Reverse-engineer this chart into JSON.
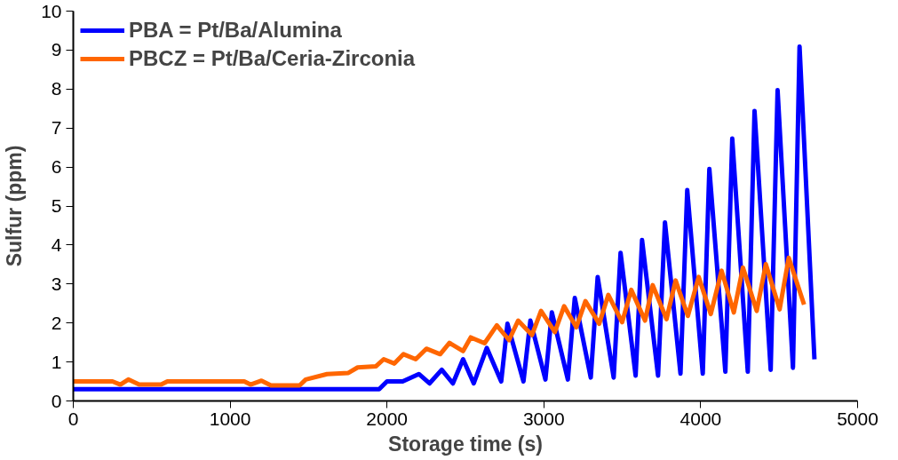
{
  "chart_data": {
    "type": "line",
    "xlabel": "Storage time (s)",
    "ylabel": "Sulfur (ppm)",
    "xlim": [
      0,
      5000
    ],
    "ylim": [
      0,
      10
    ],
    "xticks": [
      0,
      1000,
      2000,
      3000,
      4000,
      5000
    ],
    "yticks": [
      0,
      1,
      2,
      3,
      4,
      5,
      6,
      7,
      8,
      9,
      10
    ],
    "grid": false,
    "legend": "top left",
    "marker": "none",
    "line_style": "solid",
    "series": [
      {
        "name": "PBA = Pt/Ba/Alumina",
        "color": "#0000ff",
        "x": [
          0,
          1950,
          2000,
          2100,
          2203,
          2271,
          2349,
          2420,
          2485,
          2553,
          2636,
          2728,
          2768,
          2870,
          2914,
          3010,
          3051,
          3153,
          3197,
          3299,
          3343,
          3445,
          3489,
          3585,
          3626,
          3728,
          3772,
          3871,
          3914,
          4013,
          4055,
          4157,
          4201,
          4300,
          4343,
          4446,
          4490,
          4588,
          4630,
          4725
        ],
        "values": [
          0.3,
          0.3,
          0.5,
          0.5,
          0.69,
          0.45,
          0.8,
          0.45,
          1.07,
          0.45,
          1.36,
          0.5,
          1.98,
          0.5,
          2.06,
          0.55,
          2.27,
          0.55,
          2.64,
          0.6,
          3.18,
          0.6,
          3.8,
          0.65,
          4.13,
          0.65,
          4.58,
          0.7,
          5.41,
          0.7,
          5.95,
          0.75,
          6.73,
          0.75,
          7.44,
          0.8,
          7.97,
          0.85,
          9.09,
          1.07
        ]
      },
      {
        "name": "PBCZ = Pt/Ba/Ceria-Zirconia",
        "color": "#ff6600",
        "x": [
          0,
          250,
          300,
          351,
          420,
          560,
          600,
          1090,
          1130,
          1200,
          1260,
          1443,
          1482,
          1618,
          1754,
          1813,
          1930,
          1979,
          2047,
          2105,
          2183,
          2251,
          2339,
          2398,
          2485,
          2534,
          2622,
          2700,
          2778,
          2836,
          2924,
          2982,
          3070,
          3129,
          3207,
          3265,
          3353,
          3411,
          3499,
          3557,
          3645,
          3694,
          3782,
          3840,
          3918,
          3987,
          4064,
          4133,
          4211,
          4269,
          4357,
          4415,
          4503,
          4561,
          4659
        ],
        "values": [
          0.5,
          0.5,
          0.42,
          0.55,
          0.42,
          0.42,
          0.5,
          0.5,
          0.42,
          0.52,
          0.4,
          0.4,
          0.55,
          0.69,
          0.72,
          0.86,
          0.89,
          1.07,
          0.96,
          1.2,
          1.07,
          1.34,
          1.2,
          1.49,
          1.28,
          1.63,
          1.48,
          1.94,
          1.56,
          2.06,
          1.69,
          2.31,
          1.77,
          2.43,
          1.89,
          2.56,
          1.98,
          2.72,
          2.02,
          2.85,
          2.06,
          2.97,
          2.1,
          3.09,
          2.18,
          3.18,
          2.23,
          3.34,
          2.27,
          3.42,
          2.31,
          3.51,
          2.35,
          3.67,
          2.47
        ]
      }
    ]
  }
}
